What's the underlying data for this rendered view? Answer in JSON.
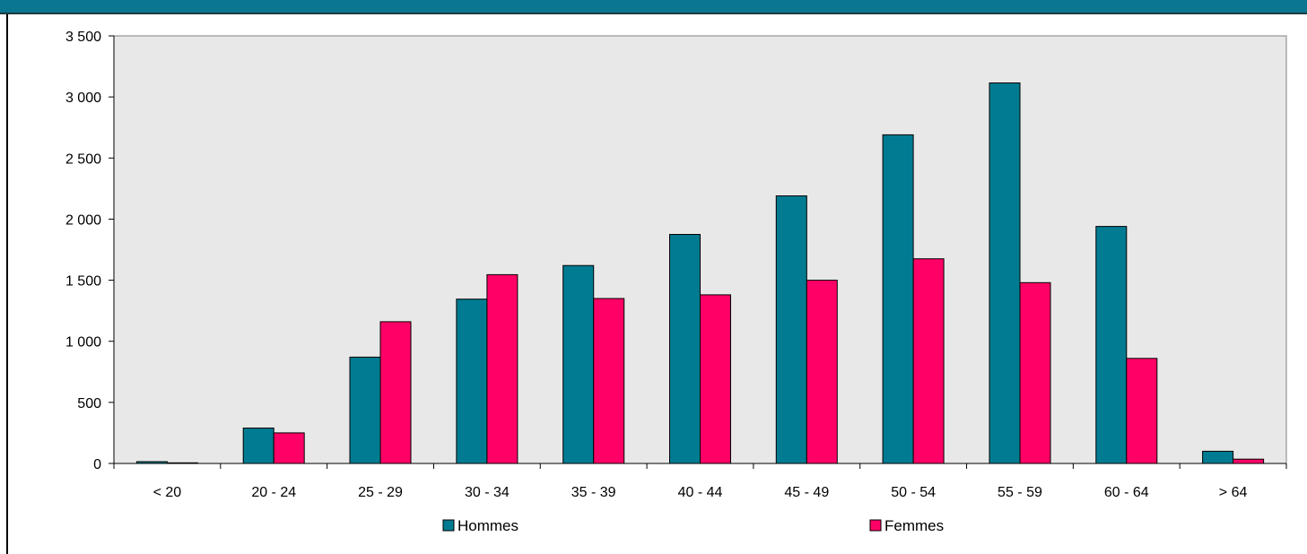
{
  "theme": {
    "band_color": "#0a7690",
    "band_edge_color": "#1d3a40",
    "plot_bg": "#e8e8e8"
  },
  "chart_data": {
    "type": "bar",
    "title": "",
    "xlabel": "",
    "ylabel": "",
    "categories": [
      "< 20",
      "20 - 24",
      "25 - 29",
      "30 - 34",
      "35 - 39",
      "40 - 44",
      "45 - 49",
      "50 - 54",
      "55 - 59",
      "60 - 64",
      "> 64"
    ],
    "series": [
      {
        "name": "Hommes",
        "color": "#007b91",
        "values": [
          15,
          290,
          870,
          1345,
          1620,
          1875,
          2190,
          2690,
          3115,
          1940,
          100
        ]
      },
      {
        "name": "Femmes",
        "color": "#ff0066",
        "values": [
          5,
          250,
          1160,
          1545,
          1350,
          1380,
          1500,
          1675,
          1480,
          860,
          35
        ]
      }
    ],
    "ylim": [
      0,
      3500
    ],
    "yticks": [
      0,
      500,
      1000,
      1500,
      2000,
      2500,
      3000,
      3500
    ],
    "ytick_labels": [
      "0",
      "500",
      "1 000",
      "1 500",
      "2 000",
      "2 500",
      "3 000",
      "3 500"
    ],
    "grid": false,
    "legend_position": "bottom"
  }
}
